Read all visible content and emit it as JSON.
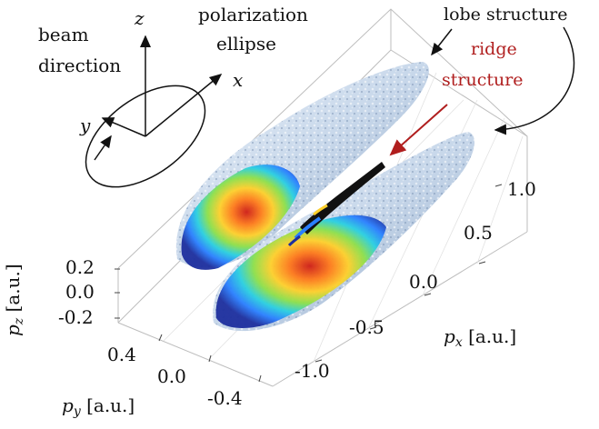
{
  "figure": {
    "inset": {
      "beam_label_1": "beam",
      "beam_label_2": "direction",
      "polarization_label_1": "polarization",
      "polarization_label_2": "ellipse",
      "axis_x": "x",
      "axis_y": "y",
      "axis_z": "z"
    },
    "annotations": {
      "lobe": "lobe structure",
      "ridge_1": "ridge",
      "ridge_2": "structure",
      "ridge_color": "#b01e1e"
    },
    "axes": {
      "pz": {
        "var": "p",
        "sub": "z",
        "unit": "[a.u.]",
        "ticks": [
          "0.2",
          "0.0",
          "-0.2"
        ]
      },
      "py": {
        "var": "p",
        "sub": "y",
        "unit": "[a.u.]",
        "ticks": [
          "0.4",
          "0.0",
          "-0.4"
        ]
      },
      "px": {
        "var": "p",
        "sub": "x",
        "unit": "[a.u.]",
        "ticks": [
          "1.0",
          "0.5",
          "0.0",
          "-0.5",
          "-1.0"
        ]
      }
    },
    "colors": {
      "lobe_surface": "#c9d8ea",
      "colormap": [
        "#1e2f9e",
        "#2a7fff",
        "#2ad0e0",
        "#8ee04a",
        "#ffd02a",
        "#ff7a1a",
        "#d01e14"
      ]
    }
  }
}
